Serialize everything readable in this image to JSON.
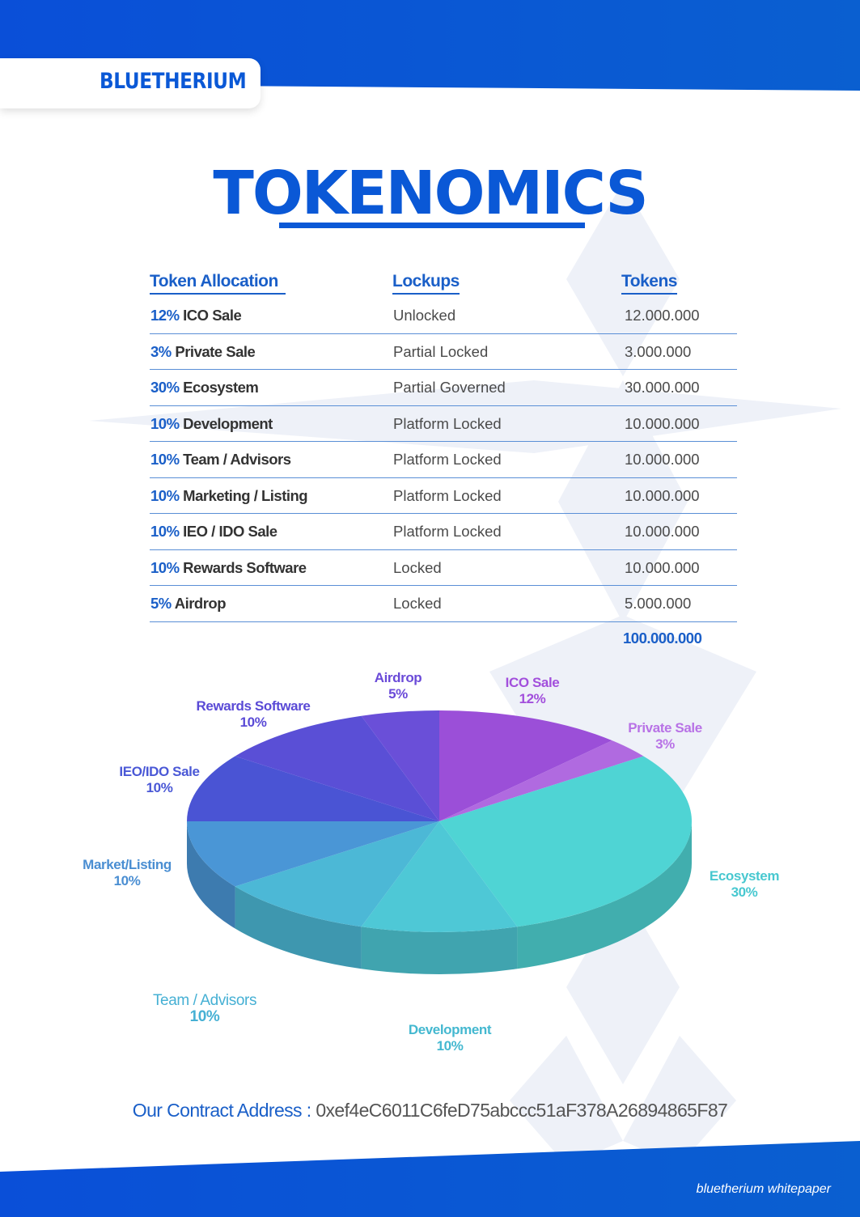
{
  "brand": "BLUETHERIUM",
  "title": "TOKENOMICS",
  "table": {
    "headers": {
      "allocation": "Token Allocation",
      "lockups": "Lockups",
      "tokens": "Tokens"
    },
    "rows": [
      {
        "pct": "12%",
        "name": "ICO Sale",
        "lockup": "Unlocked",
        "tokens": "12.000.000"
      },
      {
        "pct": "3%",
        "name": "Private Sale",
        "lockup": "Partial Locked",
        "tokens": "3.000.000"
      },
      {
        "pct": "30%",
        "name": "Ecosystem",
        "lockup": "Partial Governed",
        "tokens": "30.000.000"
      },
      {
        "pct": "10%",
        "name": "Development",
        "lockup": "Platform Locked",
        "tokens": "10.000.000"
      },
      {
        "pct": "10%",
        "name": "Team / Advisors",
        "lockup": "Platform Locked",
        "tokens": "10.000.000"
      },
      {
        "pct": "10%",
        "name": "Marketing / Listing",
        "lockup": "Platform Locked",
        "tokens": "10.000.000"
      },
      {
        "pct": "10%",
        "name": "IEO / IDO Sale",
        "lockup": "Platform Locked",
        "tokens": "10.000.000"
      },
      {
        "pct": "10%",
        "name": "Rewards Software",
        "lockup": "Locked",
        "tokens": "10.000.000"
      },
      {
        "pct": "5%",
        "name": "Airdrop",
        "lockup": "Locked",
        "tokens": "5.000.000"
      }
    ],
    "total": "100.000.000"
  },
  "chart_data": {
    "type": "pie",
    "title": "",
    "slices": [
      {
        "label": "ICO Sale",
        "pct_label": "12%",
        "value": 12,
        "color": "#9b4fd8"
      },
      {
        "label": "Private Sale",
        "pct_label": "3%",
        "value": 3,
        "color": "#b06ae0"
      },
      {
        "label": "Ecosystem",
        "pct_label": "30%",
        "value": 30,
        "color": "#4fd4d4"
      },
      {
        "label": "Development",
        "pct_label": "10%",
        "value": 10,
        "color": "#4ec8d6"
      },
      {
        "label": "Team / Advisors",
        "pct_label": "10%",
        "value": 10,
        "color": "#4cb8d6"
      },
      {
        "label": "Market/Listing",
        "pct_label": "10%",
        "value": 10,
        "color": "#4a96d6"
      },
      {
        "label": "IEO/IDO Sale",
        "pct_label": "10%",
        "value": 10,
        "color": "#4a54d4"
      },
      {
        "label": "Rewards Software",
        "pct_label": "10%",
        "value": 10,
        "color": "#5a4fd6"
      },
      {
        "label": "Airdrop",
        "pct_label": "5%",
        "value": 5,
        "color": "#6a4fd8"
      }
    ]
  },
  "contract": {
    "label": "Our Contract Address :",
    "address": "0xef4eC6011C6feD75abccc51aF378A26894865F87"
  },
  "footer": "bluetherium whitepaper"
}
